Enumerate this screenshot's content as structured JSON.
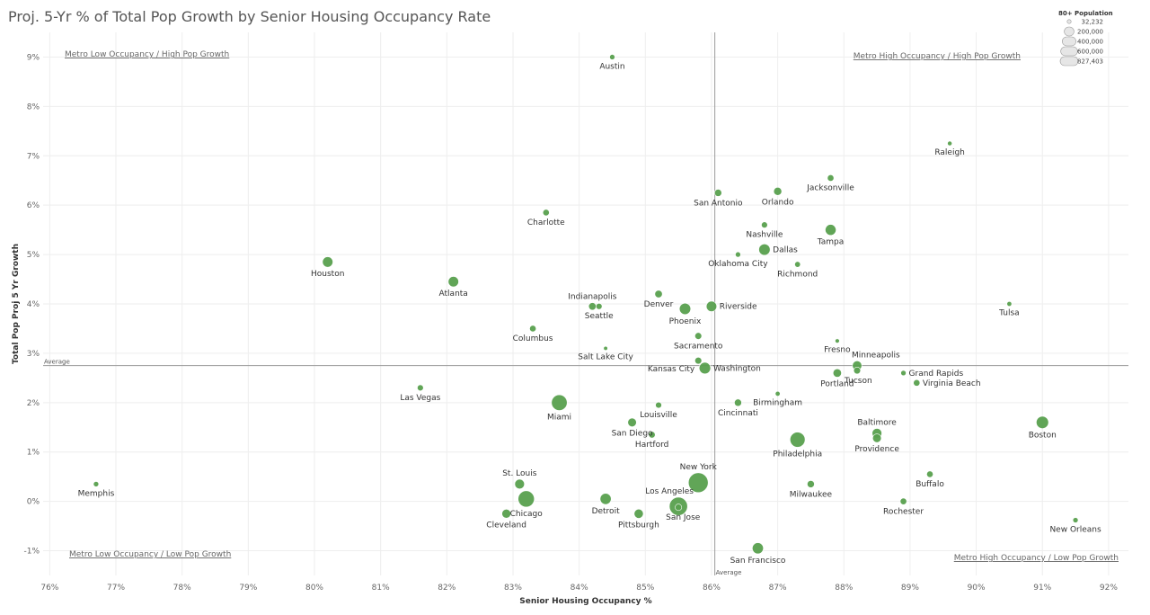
{
  "title": "Proj. 5-Yr % of Total Pop Growth by Senior Housing Occupancy Rate",
  "chart_data": {
    "type": "scatter",
    "title": "Proj. 5-Yr % of Total Pop Growth by Senior Housing Occupancy Rate",
    "xlabel": "Senior Housing Occupancy %",
    "ylabel": "Total Pop Proj 5 Yr Growth",
    "xlim": [
      75.9,
      92.3
    ],
    "ylim": [
      -1.5,
      9.5
    ],
    "x_ticks": [
      76,
      77,
      78,
      79,
      80,
      81,
      82,
      83,
      84,
      85,
      86,
      87,
      88,
      89,
      90,
      91,
      92
    ],
    "x_tick_labels": [
      "76%",
      "77%",
      "78%",
      "79%",
      "80%",
      "81%",
      "82%",
      "83%",
      "84%",
      "85%",
      "86%",
      "87%",
      "88%",
      "89%",
      "90%",
      "91%",
      "92%"
    ],
    "y_ticks": [
      -1,
      0,
      1,
      2,
      3,
      4,
      5,
      6,
      7,
      8,
      9
    ],
    "y_tick_labels": [
      "-1%",
      "0%",
      "1%",
      "2%",
      "3%",
      "4%",
      "5%",
      "6%",
      "7%",
      "8%",
      "9%"
    ],
    "grid": true,
    "point_color": "#59a14f",
    "reference_lines": [
      {
        "axis": "x",
        "value": 86.05,
        "label": "Average"
      },
      {
        "axis": "y",
        "value": 2.75,
        "label": "Average"
      }
    ],
    "quadrant_labels": [
      "Metro Low Occupancy / High Pop Growth",
      "Metro High Occupancy / High Pop Growth",
      "Metro Low Occupancy / Low Pop Growth",
      "Metro High Occupancy / Low Pop Growth"
    ],
    "size_legend": {
      "title": "80+ Population",
      "entries": [
        {
          "label": "32,232",
          "value": 32232
        },
        {
          "label": "200,000",
          "value": 200000
        },
        {
          "label": "400,000",
          "value": 400000
        },
        {
          "label": "600,000",
          "value": 600000
        },
        {
          "label": "827,403",
          "value": 827403
        }
      ]
    },
    "points": [
      {
        "name": "Austin",
        "x": 84.5,
        "y": 9.0,
        "size": 60000,
        "lpos": "below"
      },
      {
        "name": "Raleigh",
        "x": 89.6,
        "y": 7.25,
        "size": 45000,
        "lpos": "below"
      },
      {
        "name": "Jacksonville",
        "x": 87.8,
        "y": 6.55,
        "size": 90000,
        "lpos": "below"
      },
      {
        "name": "San Antonio",
        "x": 86.1,
        "y": 6.25,
        "size": 110000,
        "lpos": "below"
      },
      {
        "name": "Orlando",
        "x": 87.0,
        "y": 6.28,
        "size": 140000,
        "lpos": "below"
      },
      {
        "name": "Charlotte",
        "x": 83.5,
        "y": 5.85,
        "size": 90000,
        "lpos": "below"
      },
      {
        "name": "Nashville",
        "x": 86.8,
        "y": 5.6,
        "size": 80000,
        "lpos": "below"
      },
      {
        "name": "Tampa",
        "x": 87.8,
        "y": 5.5,
        "size": 250000,
        "lpos": "below"
      },
      {
        "name": "Dallas",
        "x": 86.8,
        "y": 5.1,
        "size": 270000,
        "lpos": "right"
      },
      {
        "name": "Oklahoma City",
        "x": 86.4,
        "y": 5.0,
        "size": 60000,
        "lpos": "below"
      },
      {
        "name": "Houston",
        "x": 80.2,
        "y": 4.85,
        "size": 230000,
        "lpos": "below"
      },
      {
        "name": "Richmond",
        "x": 87.3,
        "y": 4.8,
        "size": 70000,
        "lpos": "below"
      },
      {
        "name": "Atlanta",
        "x": 82.1,
        "y": 4.45,
        "size": 230000,
        "lpos": "below"
      },
      {
        "name": "Denver",
        "x": 85.2,
        "y": 4.2,
        "size": 120000,
        "lpos": "below"
      },
      {
        "name": "Tulsa",
        "x": 90.5,
        "y": 4.0,
        "size": 50000,
        "lpos": "below"
      },
      {
        "name": "Indianapolis",
        "x": 84.2,
        "y": 3.95,
        "size": 120000,
        "lpos": "above"
      },
      {
        "name": "Seattle",
        "x": 84.3,
        "y": 3.95,
        "size": 80000,
        "lpos": "below"
      },
      {
        "name": "Phoenix",
        "x": 85.6,
        "y": 3.9,
        "size": 270000,
        "lpos": "below"
      },
      {
        "name": "Riverside",
        "x": 86.0,
        "y": 3.95,
        "size": 230000,
        "lpos": "right"
      },
      {
        "name": "Columbus",
        "x": 83.3,
        "y": 3.5,
        "size": 90000,
        "lpos": "below"
      },
      {
        "name": "Sacramento",
        "x": 85.8,
        "y": 3.35,
        "size": 100000,
        "lpos": "below"
      },
      {
        "name": "Fresno",
        "x": 87.9,
        "y": 3.25,
        "size": 40000,
        "lpos": "below"
      },
      {
        "name": "Salt Lake City",
        "x": 84.4,
        "y": 3.1,
        "size": 35000,
        "lpos": "below"
      },
      {
        "name": "Minneapolis",
        "x": 88.2,
        "y": 2.75,
        "size": 190000,
        "lpos": "aboveright"
      },
      {
        "name": "Kansas City",
        "x": 85.8,
        "y": 2.85,
        "size": 100000,
        "lpos": "belowleft"
      },
      {
        "name": "Washington",
        "x": 85.9,
        "y": 2.7,
        "size": 280000,
        "lpos": "right"
      },
      {
        "name": "Tucson",
        "x": 88.2,
        "y": 2.65,
        "size": 100000,
        "lpos": "belowright"
      },
      {
        "name": "Portland",
        "x": 87.9,
        "y": 2.6,
        "size": 150000,
        "lpos": "below"
      },
      {
        "name": "Grand Rapids",
        "x": 88.9,
        "y": 2.6,
        "size": 60000,
        "lpos": "right"
      },
      {
        "name": "Virginia Beach",
        "x": 89.1,
        "y": 2.4,
        "size": 90000,
        "lpos": "right"
      },
      {
        "name": "Las Vegas",
        "x": 81.6,
        "y": 2.3,
        "size": 80000,
        "lpos": "below"
      },
      {
        "name": "Birmingham",
        "x": 87.0,
        "y": 2.18,
        "size": 50000,
        "lpos": "below"
      },
      {
        "name": "Miami",
        "x": 83.7,
        "y": 2.0,
        "size": 520000,
        "lpos": "below"
      },
      {
        "name": "Cincinnati",
        "x": 86.4,
        "y": 2.0,
        "size": 110000,
        "lpos": "below"
      },
      {
        "name": "Louisville",
        "x": 85.2,
        "y": 1.95,
        "size": 80000,
        "lpos": "below"
      },
      {
        "name": "San Diego",
        "x": 84.8,
        "y": 1.6,
        "size": 160000,
        "lpos": "below"
      },
      {
        "name": "Boston",
        "x": 91.0,
        "y": 1.6,
        "size": 320000,
        "lpos": "below"
      },
      {
        "name": "Baltimore",
        "x": 88.5,
        "y": 1.38,
        "size": 200000,
        "lpos": "above"
      },
      {
        "name": "Providence",
        "x": 88.5,
        "y": 1.28,
        "size": 160000,
        "lpos": "below"
      },
      {
        "name": "Hartford",
        "x": 85.1,
        "y": 1.35,
        "size": 90000,
        "lpos": "below"
      },
      {
        "name": "Philadelphia",
        "x": 87.3,
        "y": 1.25,
        "size": 480000,
        "lpos": "below"
      },
      {
        "name": "Buffalo",
        "x": 89.3,
        "y": 0.55,
        "size": 90000,
        "lpos": "below"
      },
      {
        "name": "New York",
        "x": 85.8,
        "y": 0.38,
        "size": 827403,
        "lpos": "above"
      },
      {
        "name": "St. Louis",
        "x": 83.1,
        "y": 0.35,
        "size": 200000,
        "lpos": "above"
      },
      {
        "name": "Memphis",
        "x": 76.7,
        "y": 0.35,
        "size": 60000,
        "lpos": "below"
      },
      {
        "name": "Milwaukee",
        "x": 87.5,
        "y": 0.35,
        "size": 110000,
        "lpos": "below"
      },
      {
        "name": "Chicago",
        "x": 83.2,
        "y": 0.05,
        "size": 560000,
        "lpos": "below"
      },
      {
        "name": "Detroit",
        "x": 84.4,
        "y": 0.05,
        "size": 260000,
        "lpos": "below"
      },
      {
        "name": "Los Angeles",
        "x": 85.5,
        "y": -0.1,
        "size": 700000,
        "lpos": "aboveleft"
      },
      {
        "name": "Rochester",
        "x": 88.9,
        "y": 0.0,
        "size": 90000,
        "lpos": "below"
      },
      {
        "name": "Cleveland",
        "x": 82.9,
        "y": -0.25,
        "size": 170000,
        "lpos": "below"
      },
      {
        "name": "Pittsburgh",
        "x": 84.9,
        "y": -0.25,
        "size": 180000,
        "lpos": "below"
      },
      {
        "name": "San Jose",
        "x": 85.5,
        "y": -0.12,
        "size": 90000,
        "lpos": "belowright"
      },
      {
        "name": "New Orleans",
        "x": 91.5,
        "y": -0.38,
        "size": 60000,
        "lpos": "below"
      },
      {
        "name": "San Francisco",
        "x": 86.7,
        "y": -0.95,
        "size": 260000,
        "lpos": "below"
      }
    ]
  }
}
